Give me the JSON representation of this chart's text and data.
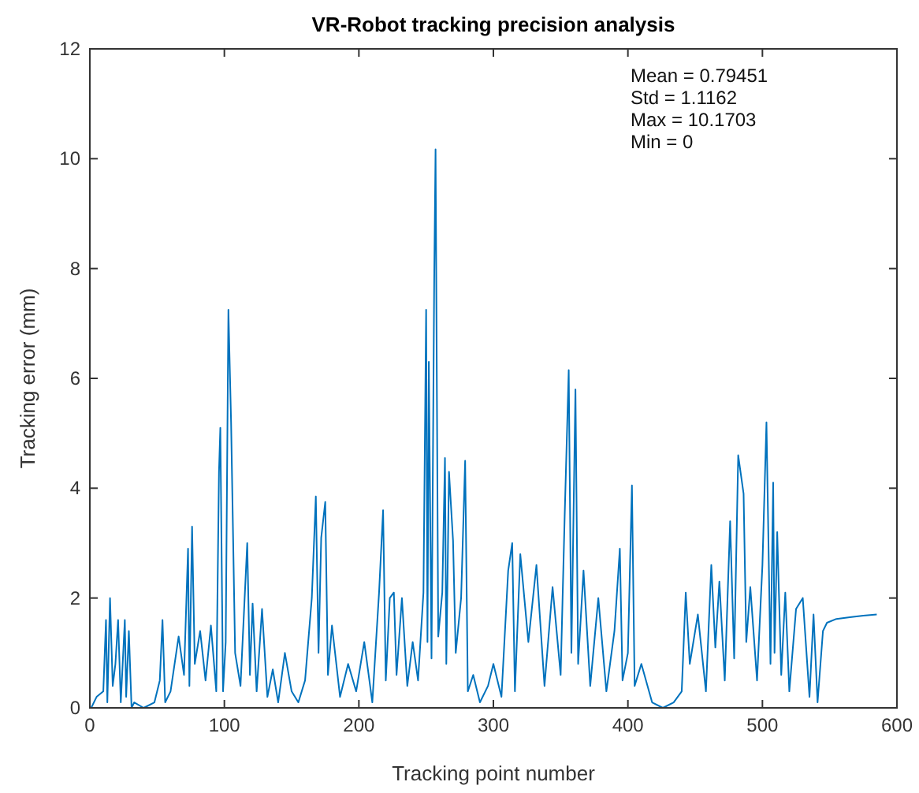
{
  "chart_data": {
    "type": "line",
    "title": "VR-Robot tracking precision analysis",
    "xlabel": "Tracking point number",
    "ylabel": "Tracking error (mm)",
    "annotations": [
      "Mean = 0.79451",
      "Std = 1.1162",
      "Max = 10.1703",
      "Min = 0"
    ],
    "xlim": [
      0,
      600
    ],
    "ylim": [
      0,
      12
    ],
    "xticks": [
      0,
      100,
      200,
      300,
      400,
      500,
      600
    ],
    "yticks": [
      0,
      2,
      4,
      6,
      8,
      10,
      12
    ],
    "grid": false,
    "marker": "none",
    "line_style": "solid",
    "series": [
      {
        "color": "#0072bd",
        "x": [
          1,
          5,
          10,
          12,
          13,
          15,
          17,
          19,
          21,
          23,
          26,
          27,
          29,
          31,
          33,
          40,
          48,
          52,
          54,
          56,
          60,
          66,
          70,
          73,
          74,
          76,
          78,
          82,
          86,
          90,
          94,
          96,
          97,
          99,
          101,
          103,
          105,
          108,
          112,
          117,
          119,
          121,
          124,
          128,
          132,
          136,
          140,
          145,
          150,
          155,
          160,
          165,
          168,
          170,
          172,
          175,
          177,
          180,
          186,
          192,
          198,
          204,
          210,
          215,
          218,
          220,
          223,
          226,
          228,
          232,
          236,
          240,
          244,
          248,
          250,
          251,
          252,
          254,
          256,
          257,
          259,
          262,
          264,
          265,
          267,
          270,
          272,
          276,
          279,
          281,
          285,
          290,
          296,
          300,
          306,
          311,
          314,
          316,
          320,
          326,
          332,
          338,
          344,
          350,
          353,
          356,
          358,
          361,
          363,
          367,
          372,
          378,
          384,
          390,
          394,
          396,
          400,
          403,
          405,
          410,
          418,
          426,
          434,
          440,
          443,
          446,
          452,
          458,
          462,
          465,
          468,
          472,
          476,
          479,
          482,
          486,
          488,
          491,
          496,
          500,
          503,
          506,
          508,
          509,
          511,
          514,
          517,
          520,
          525,
          530,
          535,
          538,
          541,
          545,
          548,
          555,
          565,
          575,
          585
        ],
        "values": [
          0,
          0.2,
          0.3,
          1.6,
          0.1,
          2.0,
          0.4,
          0.8,
          1.6,
          0.1,
          1.6,
          0.2,
          1.4,
          0,
          0.1,
          0,
          0.1,
          0.5,
          1.6,
          0.1,
          0.3,
          1.3,
          0.6,
          2.9,
          0.4,
          3.3,
          0.8,
          1.4,
          0.5,
          1.5,
          0.3,
          4.3,
          5.1,
          0.3,
          1.2,
          7.25,
          5.2,
          1.0,
          0.4,
          3.0,
          0.6,
          1.9,
          0.3,
          1.8,
          0.2,
          0.7,
          0.1,
          1.0,
          0.3,
          0.1,
          0.5,
          2.0,
          3.85,
          1.0,
          3.1,
          3.75,
          0.6,
          1.5,
          0.2,
          0.8,
          0.3,
          1.2,
          0.1,
          2.1,
          3.6,
          0.5,
          2.0,
          2.1,
          0.6,
          2.0,
          0.4,
          1.2,
          0.5,
          2.1,
          7.25,
          1.2,
          6.3,
          0.9,
          7.8,
          10.17,
          1.3,
          2.1,
          4.55,
          0.8,
          4.3,
          3.05,
          1.0,
          2.0,
          4.5,
          0.3,
          0.6,
          0.1,
          0.4,
          0.8,
          0.2,
          2.5,
          3.0,
          0.3,
          2.8,
          1.2,
          2.6,
          0.4,
          2.2,
          0.6,
          3.5,
          6.15,
          1.0,
          5.8,
          0.8,
          2.5,
          0.4,
          2.0,
          0.3,
          1.4,
          2.9,
          0.5,
          1.0,
          4.05,
          0.4,
          0.8,
          0.1,
          0,
          0.1,
          0.3,
          2.1,
          0.8,
          1.7,
          0.3,
          2.6,
          1.1,
          2.3,
          0.5,
          3.4,
          0.9,
          4.6,
          3.9,
          1.2,
          2.2,
          0.5,
          2.6,
          5.2,
          0.8,
          4.1,
          1.0,
          3.2,
          0.6,
          2.1,
          0.3,
          1.8,
          2.0,
          0.2,
          1.7,
          0.1,
          1.4,
          1.55,
          1.62,
          1.65,
          1.68,
          1.7
        ]
      }
    ]
  }
}
